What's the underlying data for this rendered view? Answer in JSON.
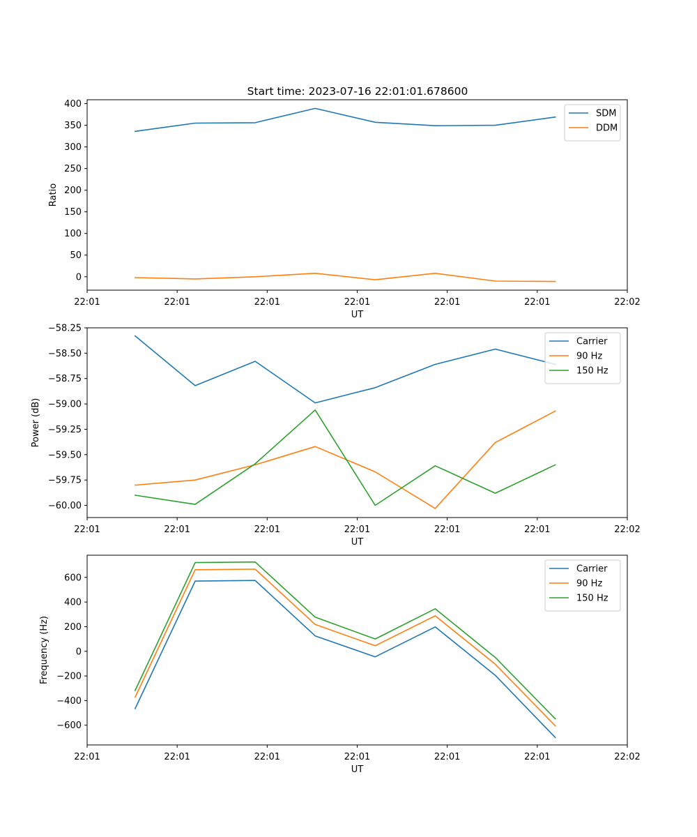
{
  "figure_title": "Start time: 2023-07-16 22:01:01.678600",
  "colors": {
    "blue": "#1f77b4",
    "orange": "#ff7f0e",
    "green": "#2ca02c"
  },
  "chart_data": [
    {
      "type": "line",
      "title": "Start time: 2023-07-16 22:01:01.678600",
      "xlabel": "UT",
      "ylabel": "Ratio",
      "x": [
        1,
        2,
        3,
        4,
        5,
        6,
        7,
        8
      ],
      "xlim": [
        0.2,
        9.2
      ],
      "xticks": [
        0.2,
        1.7,
        3.2,
        4.7,
        6.2,
        7.7,
        9.2
      ],
      "xtick_labels": [
        "22:01",
        "22:01",
        "22:01",
        "22:01",
        "22:01",
        "22:01",
        "22:02"
      ],
      "ylim": [
        -31,
        409
      ],
      "yticks": [
        0,
        50,
        100,
        150,
        200,
        250,
        300,
        350,
        400
      ],
      "ytick_labels": [
        "0",
        "50",
        "100",
        "150",
        "200",
        "250",
        "300",
        "350",
        "400"
      ],
      "legend_position": "upper right",
      "series": [
        {
          "name": "SDM",
          "color": "#1f77b4",
          "values": [
            336,
            355,
            356,
            389,
            357,
            349,
            350,
            369
          ]
        },
        {
          "name": "DDM",
          "color": "#ff7f0e",
          "values": [
            -2,
            -5,
            0,
            8,
            -7,
            8,
            -10,
            -11
          ]
        }
      ]
    },
    {
      "type": "line",
      "title": "",
      "xlabel": "UT",
      "ylabel": "Power (dB)",
      "x": [
        1,
        2,
        3,
        4,
        5,
        6,
        7,
        8
      ],
      "xlim": [
        0.2,
        9.2
      ],
      "xticks": [
        0.2,
        1.7,
        3.2,
        4.7,
        6.2,
        7.7,
        9.2
      ],
      "xtick_labels": [
        "22:01",
        "22:01",
        "22:01",
        "22:01",
        "22:01",
        "22:01",
        "22:02"
      ],
      "ylim": [
        -60.12,
        -58.25
      ],
      "yticks": [
        -58.25,
        -58.5,
        -58.75,
        -59.0,
        -59.25,
        -59.5,
        -59.75,
        -60.0
      ],
      "ytick_labels": [
        "−58.25",
        "−58.50",
        "−58.75",
        "−59.00",
        "−59.25",
        "−59.50",
        "−59.75",
        "−60.00"
      ],
      "legend_position": "upper right",
      "series": [
        {
          "name": "Carrier",
          "color": "#1f77b4",
          "values": [
            -58.33,
            -58.82,
            -58.58,
            -58.99,
            -58.84,
            -58.61,
            -58.46,
            -58.61
          ]
        },
        {
          "name": "90 Hz",
          "color": "#ff7f0e",
          "values": [
            -59.8,
            -59.75,
            -59.6,
            -59.42,
            -59.67,
            -60.03,
            -59.38,
            -59.07
          ]
        },
        {
          "name": "150 Hz",
          "color": "#2ca02c",
          "values": [
            -59.9,
            -59.99,
            -59.59,
            -59.06,
            -60.0,
            -59.61,
            -59.88,
            -59.6
          ]
        }
      ]
    },
    {
      "type": "line",
      "title": "",
      "xlabel": "UT",
      "ylabel": "Frequency (Hz)",
      "x": [
        1,
        2,
        3,
        4,
        5,
        6,
        7,
        8
      ],
      "xlim": [
        0.2,
        9.2
      ],
      "xticks": [
        0.2,
        1.7,
        3.2,
        4.7,
        6.2,
        7.7,
        9.2
      ],
      "xtick_labels": [
        "22:01",
        "22:01",
        "22:01",
        "22:01",
        "22:01",
        "22:01",
        "22:02"
      ],
      "ylim": [
        -760,
        780
      ],
      "yticks": [
        -600,
        -400,
        -200,
        0,
        200,
        400,
        600
      ],
      "ytick_labels": [
        "−600",
        "−400",
        "−200",
        "0",
        "200",
        "400",
        "600"
      ],
      "legend_position": "upper right",
      "series": [
        {
          "name": "Carrier",
          "color": "#1f77b4",
          "values": [
            -465,
            570,
            575,
            125,
            -45,
            198,
            -195,
            -700
          ]
        },
        {
          "name": "90 Hz",
          "color": "#ff7f0e",
          "values": [
            -372,
            662,
            667,
            218,
            45,
            288,
            -105,
            -605
          ]
        },
        {
          "name": "150 Hz",
          "color": "#2ca02c",
          "values": [
            -318,
            720,
            725,
            277,
            100,
            345,
            -50,
            -548
          ]
        }
      ]
    }
  ]
}
